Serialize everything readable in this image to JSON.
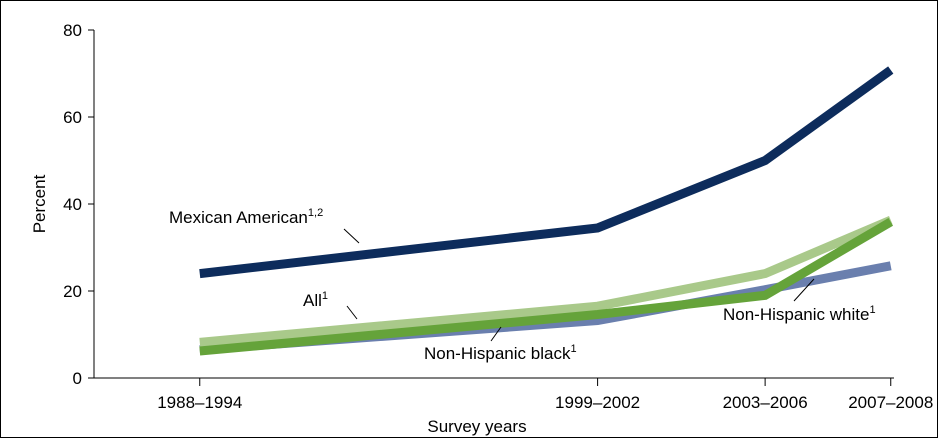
{
  "chart_data": {
    "type": "line",
    "xlabel": "Survey years",
    "ylabel": "Percent",
    "categories": [
      "1988–1994",
      "1999–2002",
      "2003–2006",
      "2007–2008"
    ],
    "x_values": [
      1991,
      2000.5,
      2004.5,
      2007.5
    ],
    "ylim": [
      0,
      80
    ],
    "yticks": [
      0,
      20,
      40,
      60,
      80
    ],
    "grid": false,
    "series": [
      {
        "name": "Non-Hispanic black",
        "superscript": "1",
        "color": "#6a7fae",
        "values": [
          6.5,
          13.2,
          20.3,
          25.8
        ]
      },
      {
        "name": "All",
        "superscript": "1",
        "color": "#a9c98a",
        "values": [
          8.2,
          16.5,
          24.0,
          36.3
        ]
      },
      {
        "name": "Non-Hispanic white",
        "superscript": "1",
        "color": "#65a33a",
        "values": [
          6.2,
          14.6,
          19.0,
          35.9
        ]
      },
      {
        "name": "Mexican American",
        "superscript": "1,2",
        "color": "#0d2c5c",
        "values": [
          24.0,
          34.5,
          50.0,
          70.8
        ]
      }
    ]
  }
}
